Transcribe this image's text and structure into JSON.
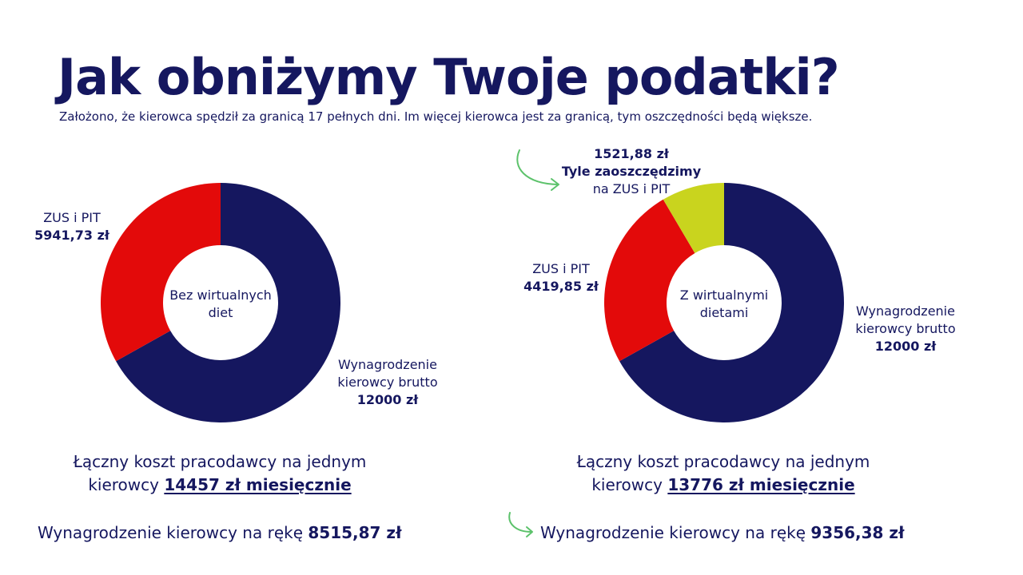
{
  "title": "Jak obniżymy Twoje podatki?",
  "subtitle": "Założono, że kierowca spędził za granicą 17 pełnych dni. Im więcej kierowca jest za granicą, tym oszczędności będą większe.",
  "colors": {
    "navy": "#15175f",
    "red": "#e30a0a",
    "lime": "#c9d41e",
    "arrow_green": "#5cc26b"
  },
  "left": {
    "center_line1": "Bez wirtualnych",
    "center_line2": "diet",
    "tax_label": "ZUS i PIT",
    "tax_value": "5941,73 zł",
    "salary_line1": "Wynagrodzenie",
    "salary_line2": "kierowcy brutto",
    "salary_value": "12000 zł",
    "cost_line1": "Łączny koszt pracodawcy na jednym",
    "cost_prefix": "kierowcy",
    "cost_amount": "14457 zł miesięcznie",
    "net_text": "Wynagrodzenie kierowcy na rękę",
    "net_amount": "8515,87 zł"
  },
  "right": {
    "center_line1": "Z wirtualnymi",
    "center_line2": "dietami",
    "tax_label": "ZUS i PIT",
    "tax_value": "4419,85 zł",
    "savings_value": "1521,88 zł",
    "savings_line1": "Tyle zaoszczędzimy",
    "savings_line2": "na ZUS i PIT",
    "salary_line1": "Wynagrodzenie",
    "salary_line2": "kierowcy brutto",
    "salary_value": "12000 zł",
    "cost_line1": "Łączny koszt pracodawcy na jednym",
    "cost_prefix": "kierowcy",
    "cost_amount": "13776 zł miesięcznie",
    "net_text": "Wynagrodzenie kierowcy na rękę",
    "net_amount": "9356,38 zł"
  },
  "chart_data": [
    {
      "type": "pie",
      "center_label": "Bez wirtualnych diet",
      "categories": [
        "Wynagrodzenie kierowcy brutto",
        "ZUS i PIT"
      ],
      "values": [
        12000,
        5941.73
      ],
      "colors": [
        "#15175f",
        "#e30a0a"
      ]
    },
    {
      "type": "pie",
      "center_label": "Z wirtualnymi dietami",
      "categories": [
        "Wynagrodzenie kierowcy brutto",
        "ZUS i PIT",
        "Tyle zaoszczędzimy na ZUS i PIT"
      ],
      "values": [
        12000,
        4419.85,
        1521.88
      ],
      "colors": [
        "#15175f",
        "#e30a0a",
        "#c9d41e"
      ]
    }
  ]
}
